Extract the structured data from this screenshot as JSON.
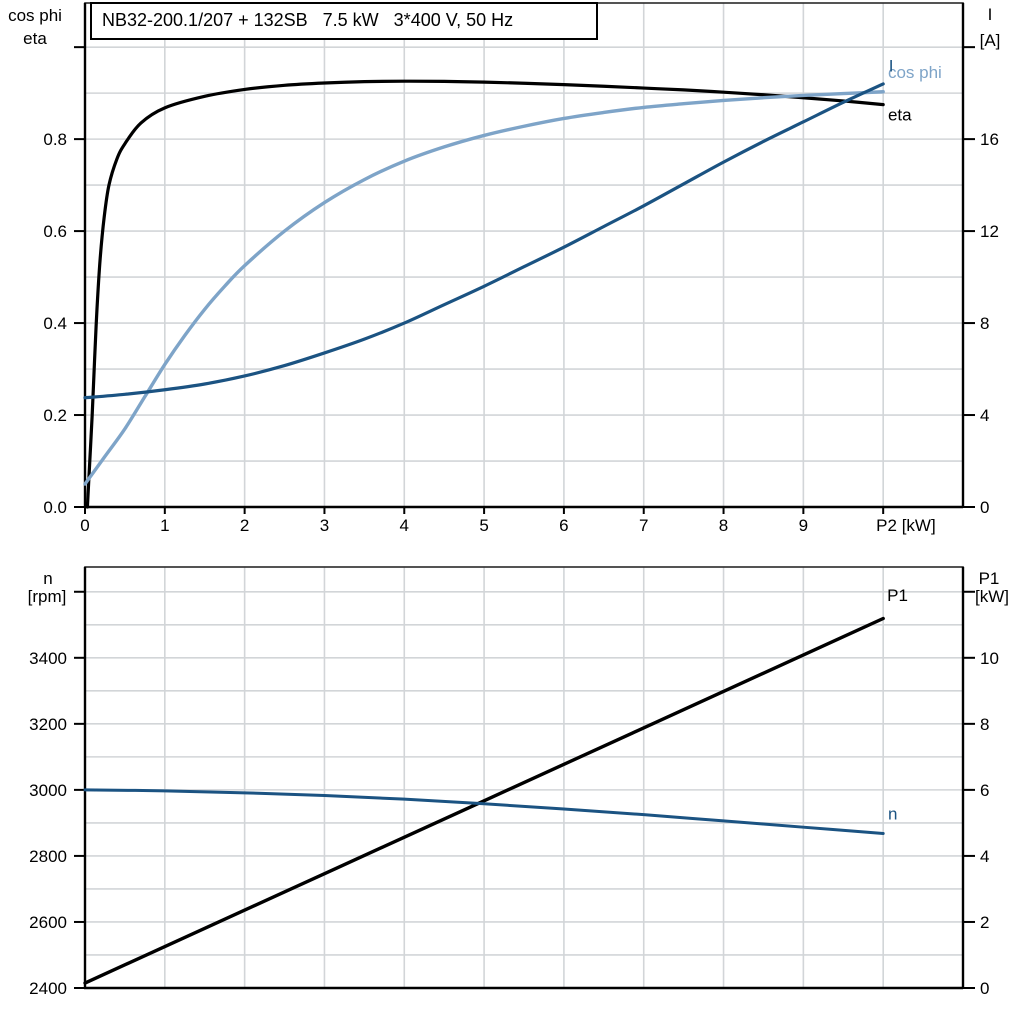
{
  "title_box": {
    "text": "NB32-200.1/207 + 132SB   7.5 kW   3*400 V, 50 Hz"
  },
  "colors": {
    "black": "#000000",
    "light_blue": "#7ea4c8",
    "dark_blue": "#1b5382",
    "grid": "#d2d5d8",
    "frame": "#2a2a2a",
    "text": "#000000"
  },
  "chart_data": [
    {
      "type": "line",
      "id": "electrical-curves",
      "x_axis": {
        "label": "P2 [kW]",
        "range": [
          0,
          11
        ],
        "tick_values": [
          0,
          1,
          2,
          3,
          4,
          5,
          6,
          7,
          8,
          9,
          10
        ],
        "tick_labels": [
          "0",
          "1",
          "2",
          "3",
          "4",
          "5",
          "6",
          "7",
          "8",
          "9",
          ""
        ],
        "grid_values": [
          1,
          2,
          3,
          4,
          5,
          6,
          7,
          8,
          9,
          10
        ]
      },
      "y_left": {
        "title_lines": [
          "cos phi",
          "eta"
        ],
        "range": [
          0,
          1.096
        ],
        "tick_values": [
          0,
          0.2,
          0.4,
          0.6,
          0.8,
          1.0
        ],
        "tick_labels": [
          "0.0",
          "0.2",
          "0.4",
          "0.6",
          "0.8",
          ""
        ],
        "grid_values": [
          0.1,
          0.2,
          0.3,
          0.4,
          0.5,
          0.6,
          0.7,
          0.8,
          0.9,
          1.0
        ]
      },
      "y_right": {
        "title_lines": [
          "I",
          "[A]"
        ],
        "range": [
          0,
          21.92
        ],
        "tick_values": [
          0,
          4,
          8,
          12,
          16,
          20
        ],
        "tick_labels": [
          "0",
          "4",
          "8",
          "12",
          "16",
          ""
        ]
      },
      "series": [
        {
          "name": "eta",
          "axis": "left",
          "color_key": "black",
          "stroke_width": 3.2,
          "label": {
            "text": "eta",
            "x": 10.06,
            "y": 0.854
          },
          "points": [
            [
              0.03,
              0
            ],
            [
              0.06,
              0.1
            ],
            [
              0.09,
              0.2
            ],
            [
              0.12,
              0.32
            ],
            [
              0.15,
              0.43
            ],
            [
              0.19,
              0.54
            ],
            [
              0.24,
              0.63
            ],
            [
              0.3,
              0.7
            ],
            [
              0.4,
              0.757
            ],
            [
              0.5,
              0.79
            ],
            [
              0.7,
              0.835
            ],
            [
              1.0,
              0.868
            ],
            [
              1.5,
              0.893
            ],
            [
              2.0,
              0.908
            ],
            [
              2.5,
              0.917
            ],
            [
              3.0,
              0.922
            ],
            [
              3.5,
              0.925
            ],
            [
              4.0,
              0.926
            ],
            [
              4.5,
              0.9255
            ],
            [
              5.0,
              0.924
            ],
            [
              5.5,
              0.9215
            ],
            [
              6.0,
              0.9185
            ],
            [
              6.5,
              0.915
            ],
            [
              7.0,
              0.911
            ],
            [
              7.5,
              0.907
            ],
            [
              8.0,
              0.902
            ],
            [
              8.5,
              0.8965
            ],
            [
              9.0,
              0.89
            ],
            [
              9.5,
              0.883
            ],
            [
              10.0,
              0.875
            ]
          ]
        },
        {
          "name": "cos phi",
          "axis": "left",
          "color_key": "light_blue",
          "stroke_width": 3.4,
          "label": {
            "text": "cos phi",
            "x": 10.06,
            "y": 0.946
          },
          "points": [
            [
              0,
              0.05
            ],
            [
              0.25,
              0.11
            ],
            [
              0.5,
              0.17
            ],
            [
              0.75,
              0.24
            ],
            [
              1.0,
              0.31
            ],
            [
              1.25,
              0.373
            ],
            [
              1.5,
              0.43
            ],
            [
              1.75,
              0.48
            ],
            [
              2.0,
              0.525
            ],
            [
              2.5,
              0.6
            ],
            [
              3.0,
              0.662
            ],
            [
              3.5,
              0.712
            ],
            [
              4.0,
              0.752
            ],
            [
              4.5,
              0.783
            ],
            [
              5.0,
              0.808
            ],
            [
              5.5,
              0.828
            ],
            [
              6.0,
              0.845
            ],
            [
              6.5,
              0.858
            ],
            [
              7.0,
              0.869
            ],
            [
              7.5,
              0.877
            ],
            [
              8.0,
              0.884
            ],
            [
              8.5,
              0.89
            ],
            [
              9.0,
              0.895
            ],
            [
              9.5,
              0.899
            ],
            [
              10.0,
              0.903
            ]
          ]
        },
        {
          "name": "I",
          "axis": "right",
          "color_key": "dark_blue",
          "stroke_width": 3.2,
          "label": {
            "text": "I",
            "x": 10.07,
            "y": 19.2
          },
          "points": [
            [
              0,
              4.75
            ],
            [
              0.5,
              4.9
            ],
            [
              1.0,
              5.1
            ],
            [
              1.5,
              5.35
            ],
            [
              2.0,
              5.7
            ],
            [
              2.5,
              6.15
            ],
            [
              3.0,
              6.7
            ],
            [
              3.5,
              7.3
            ],
            [
              4.0,
              8.0
            ],
            [
              4.5,
              8.8
            ],
            [
              5.0,
              9.6
            ],
            [
              5.5,
              10.45
            ],
            [
              6.0,
              11.3
            ],
            [
              6.5,
              12.2
            ],
            [
              7.0,
              13.1
            ],
            [
              7.5,
              14.05
            ],
            [
              8.0,
              15.0
            ],
            [
              8.5,
              15.9
            ],
            [
              9.0,
              16.75
            ],
            [
              9.5,
              17.6
            ],
            [
              10.0,
              18.4
            ]
          ]
        }
      ]
    },
    {
      "type": "line",
      "id": "speed-power-curves",
      "x_axis": {
        "label": "",
        "range": [
          0,
          11
        ],
        "tick_values": [],
        "tick_labels": [],
        "grid_values": [
          1,
          2,
          3,
          4,
          5,
          6,
          7,
          8,
          9,
          10
        ]
      },
      "y_left": {
        "title_lines": [
          "n",
          "[rpm]"
        ],
        "range": [
          2400,
          3675
        ],
        "tick_values": [
          2400,
          2600,
          2800,
          3000,
          3200,
          3400,
          3600
        ],
        "tick_labels": [
          "2400",
          "2600",
          "2800",
          "3000",
          "3200",
          "3400",
          ""
        ],
        "grid_values": [
          2500,
          2600,
          2700,
          2800,
          2900,
          3000,
          3100,
          3200,
          3300,
          3400,
          3500,
          3600
        ]
      },
      "y_right": {
        "title_lines": [
          "P1",
          "[kW]"
        ],
        "range": [
          0,
          12.75
        ],
        "tick_values": [
          0,
          2,
          4,
          6,
          8,
          10,
          12
        ],
        "tick_labels": [
          "0",
          "2",
          "4",
          "6",
          "8",
          "10",
          ""
        ]
      },
      "series": [
        {
          "name": "P1",
          "axis": "right",
          "color_key": "black",
          "stroke_width": 3.4,
          "label": {
            "text": "P1",
            "x": 10.05,
            "y": 11.9
          },
          "points": [
            [
              0,
              0.15
            ],
            [
              5,
              5.67
            ],
            [
              10,
              11.19
            ]
          ]
        },
        {
          "name": "n",
          "axis": "left",
          "color_key": "dark_blue",
          "stroke_width": 3.0,
          "label": {
            "text": "n",
            "x": 10.06,
            "y": 2928
          },
          "points": [
            [
              0,
              3000
            ],
            [
              1,
              2997
            ],
            [
              2,
              2991
            ],
            [
              3,
              2983
            ],
            [
              4,
              2972
            ],
            [
              5,
              2958
            ],
            [
              6,
              2942
            ],
            [
              7,
              2925
            ],
            [
              8,
              2906
            ],
            [
              9,
              2887
            ],
            [
              10,
              2868
            ]
          ]
        }
      ]
    }
  ],
  "layout_hints": {
    "grid": "on",
    "legend_position": "right-inline-labels",
    "x_shared_range_note": "curves span P2 = 0 to 10 kW, plot extends to 11"
  }
}
